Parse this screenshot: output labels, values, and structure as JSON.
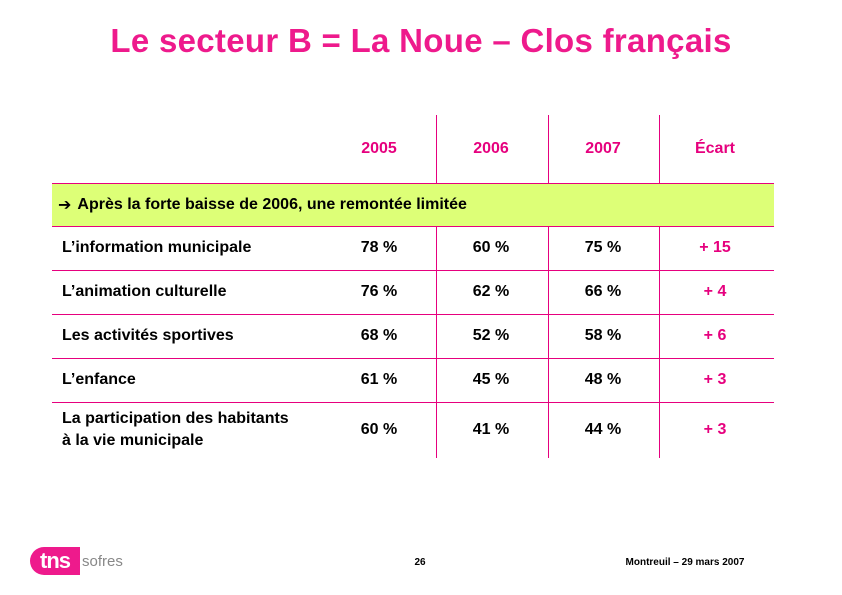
{
  "title": "Le secteur B = La Noue – Clos français",
  "table": {
    "headers": [
      "2005",
      "2006",
      "2007",
      "Écart"
    ],
    "band": {
      "arrow": "➔",
      "text": "Après la forte baisse de 2006, une remontée limitée"
    },
    "rows": [
      {
        "label": "L’information municipale",
        "v2005": "78 %",
        "v2006": "60 %",
        "v2007": "75 %",
        "ecart": "+ 15"
      },
      {
        "label": "L’animation culturelle",
        "v2005": "76 %",
        "v2006": "62 %",
        "v2007": "66 %",
        "ecart": "+ 4"
      },
      {
        "label": "Les activités sportives",
        "v2005": "68 %",
        "v2006": "52 %",
        "v2007": "58 %",
        "ecart": "+ 6"
      },
      {
        "label": "L’enfance",
        "v2005": "61 %",
        "v2006": "45 %",
        "v2007": "48 %",
        "ecart": "+ 3"
      },
      {
        "label_line1": "La participation des habitants",
        "label_line2": "à la vie municipale",
        "v2005": "60 %",
        "v2006": "41 %",
        "v2007": "44 %",
        "ecart": "+ 3"
      }
    ]
  },
  "footer": {
    "page_number": "26",
    "place_date": "Montreuil – 29 mars 2007",
    "logo_mark": "tns",
    "logo_word": "sofres"
  },
  "colors": {
    "accent": "#e6007e",
    "band": "#ddff77"
  }
}
